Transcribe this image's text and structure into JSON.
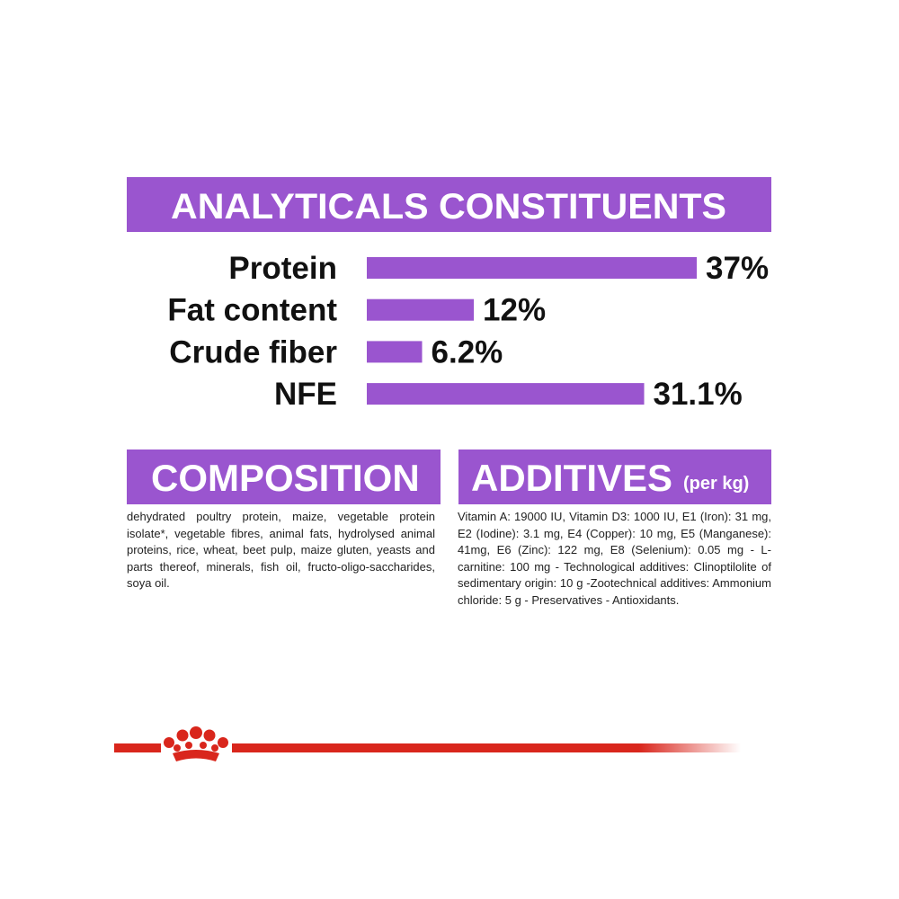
{
  "chart_data": {
    "type": "bar",
    "title": "ANALYTICALS CONSTITUENTS",
    "categories": [
      "Protein",
      "Fat content",
      "Crude fiber",
      "NFE"
    ],
    "values": [
      37,
      12,
      6.2,
      31.1
    ],
    "value_labels": [
      "37%",
      "12%",
      "6.2%",
      "31.1%"
    ],
    "color": "#9a55cf"
  },
  "composition": {
    "title": "COMPOSITION",
    "text": "dehydrated poultry protein, maize, vegetable protein isolate*, vegetable fibres, animal fats, hydrolysed animal proteins, rice, wheat, beet pulp, maize gluten, yeasts and parts thereof, minerals, fish oil, fructo-oligo-saccharides, soya oil."
  },
  "additives": {
    "title": "ADDITIVES",
    "unit": "(per kg)",
    "text": "Vitamin A: 19000 IU, Vitamin D3: 1000 IU, E1 (Iron): 31 mg, E2 (Iodine): 3.1 mg, E4 (Copper): 10 mg, E5 (Manganese): 41mg, E6 (Zinc): 122 mg, E8 (Selenium): 0.05 mg - L- carnitine: 100 mg - Technological additives: Clinoptilolite of sedimentary origin: 10 g -Zootechnical additives: Ammonium chloride: 5 g - Preservatives - Antioxidants."
  }
}
